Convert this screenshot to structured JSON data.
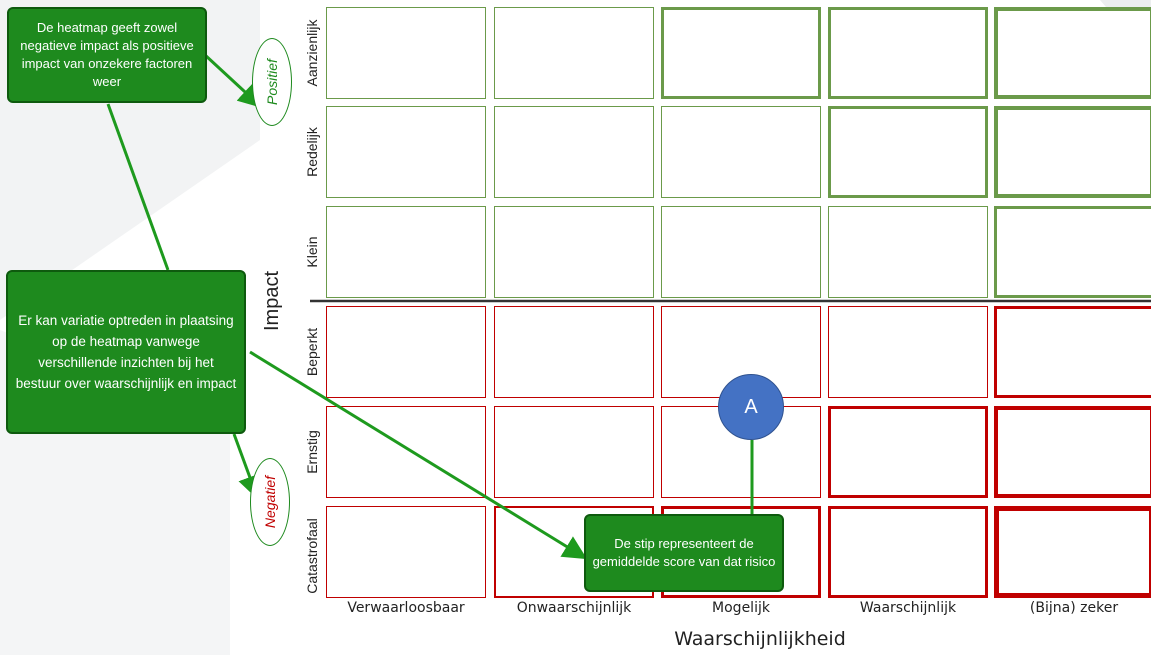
{
  "axes": {
    "x_title": "Waarschijnlijkheid",
    "y_title": "Impact",
    "columns": [
      "Verwaarloosbaar",
      "Onwaarschijnlijk",
      "Mogelijk",
      "Waarschijnlijk",
      "(Bijna) zeker"
    ],
    "rows": [
      "Aanzienlijk",
      "Redelijk",
      "Klein",
      "Beperkt",
      "Ernstig",
      "Catastrofaal"
    ]
  },
  "zones": {
    "positive": "Positief",
    "negative": "Negatief"
  },
  "callouts": {
    "heatmap_note": "De heatmap geeft zowel negatieve impact als positieve impact van onzekere factoren weer",
    "variation_note": "Er kan variatie optreden in plaatsing op de heatmap vanwege verschillende inzichten bij het bestuur over waarschijnlijk en impact",
    "dot_note": "De stip representeert de gemiddelde score van dat risico"
  },
  "marker": {
    "label": "A",
    "column": "Mogelijk",
    "row": "Ernstig"
  },
  "colors": {
    "positive": "#6b9a4a",
    "negative": "#c00000",
    "callout": "#1e8a1e",
    "marker": "#4472c4"
  }
}
